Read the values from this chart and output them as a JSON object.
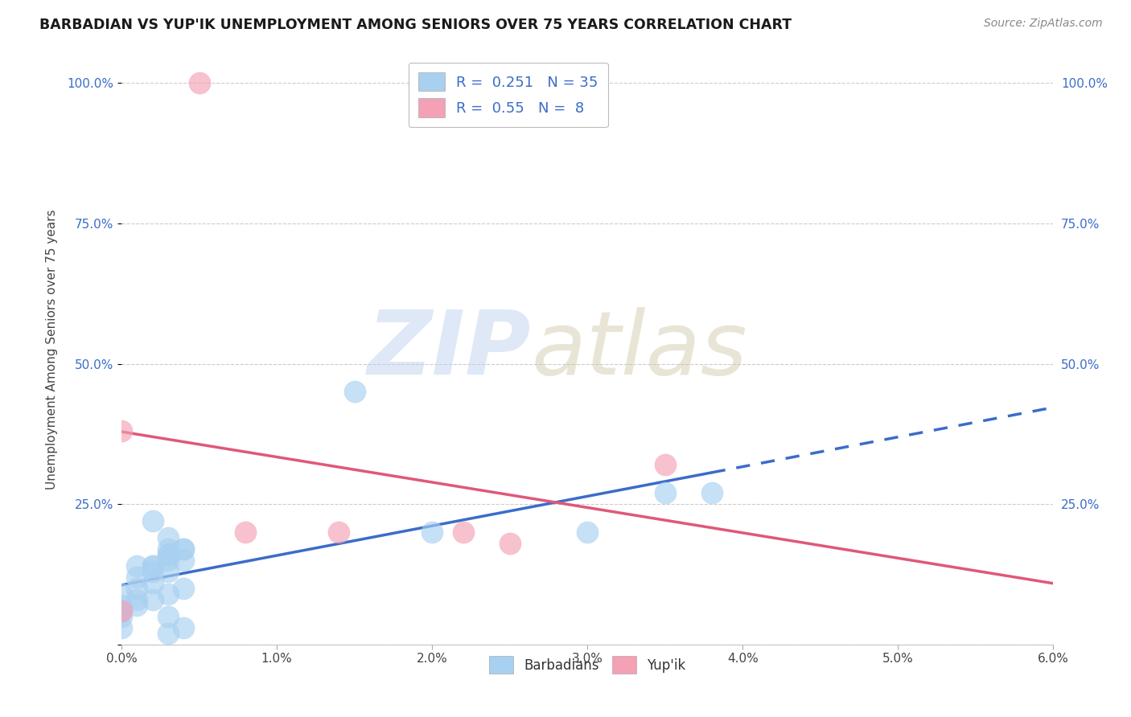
{
  "title": "BARBADIAN VS YUP'IK UNEMPLOYMENT AMONG SENIORS OVER 75 YEARS CORRELATION CHART",
  "source": "Source: ZipAtlas.com",
  "ylabel": "Unemployment Among Seniors over 75 years",
  "xlim": [
    0.0,
    0.06
  ],
  "ylim": [
    0.0,
    1.05
  ],
  "xticks": [
    0.0,
    0.01,
    0.02,
    0.03,
    0.04,
    0.05,
    0.06
  ],
  "xticklabels": [
    "0.0%",
    "1.0%",
    "2.0%",
    "3.0%",
    "4.0%",
    "5.0%",
    "6.0%"
  ],
  "yticks": [
    0.0,
    0.25,
    0.5,
    0.75,
    1.0
  ],
  "yticklabels": [
    "",
    "25.0%",
    "50.0%",
    "75.0%",
    "100.0%"
  ],
  "barbadian_R": 0.251,
  "barbadian_N": 35,
  "yupik_R": 0.55,
  "yupik_N": 8,
  "barbadian_color": "#A8D0F0",
  "yupik_color": "#F4A0B5",
  "trend_blue": "#3B6CC9",
  "trend_pink": "#E05878",
  "barbadian_x": [
    0.0,
    0.0,
    0.0,
    0.0,
    0.0,
    0.001,
    0.001,
    0.001,
    0.001,
    0.001,
    0.002,
    0.002,
    0.002,
    0.002,
    0.002,
    0.002,
    0.003,
    0.003,
    0.003,
    0.003,
    0.003,
    0.003,
    0.003,
    0.003,
    0.003,
    0.004,
    0.004,
    0.004,
    0.004,
    0.004,
    0.015,
    0.02,
    0.03,
    0.035,
    0.038
  ],
  "barbadian_y": [
    0.05,
    0.07,
    0.09,
    0.06,
    0.03,
    0.1,
    0.08,
    0.12,
    0.14,
    0.07,
    0.14,
    0.22,
    0.14,
    0.13,
    0.11,
    0.08,
    0.17,
    0.19,
    0.16,
    0.13,
    0.16,
    0.15,
    0.09,
    0.05,
    0.02,
    0.17,
    0.15,
    0.1,
    0.17,
    0.03,
    0.45,
    0.2,
    0.2,
    0.27,
    0.27
  ],
  "yupik_x": [
    0.0,
    0.0,
    0.005,
    0.008,
    0.014,
    0.022,
    0.025,
    0.035
  ],
  "yupik_y": [
    0.38,
    0.06,
    1.0,
    0.2,
    0.2,
    0.2,
    0.18,
    0.32
  ],
  "trend_solid_end": 0.038,
  "trend_dash_start": 0.038
}
